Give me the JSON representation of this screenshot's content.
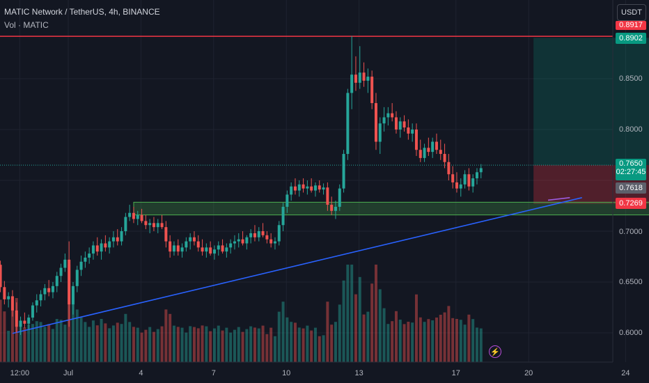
{
  "header": {
    "title": "MATIC Network / TetherUS, 4h, BINANCE",
    "volume_label": "Vol · MATIC"
  },
  "currency_button": "USDT",
  "price_axis": [
    "0.8500",
    "0.8000",
    "0.7000",
    "0.6500",
    "0.6000"
  ],
  "price_tags": {
    "resistance": "0.8917",
    "target": "0.8902",
    "entry": "0.7650",
    "countdown": "02:27:45",
    "current": "0.7618",
    "stop": "0.7269"
  },
  "date_axis": [
    {
      "label": "12:00",
      "x": -2
    },
    {
      "label": "Jul",
      "x": 0
    },
    {
      "label": "4",
      "x": 3
    },
    {
      "label": "7",
      "x": 6
    },
    {
      "label": "10",
      "x": 9
    },
    {
      "label": "13",
      "x": 12
    },
    {
      "label": "17",
      "x": 16
    },
    {
      "label": "20",
      "x": 19
    },
    {
      "label": "24",
      "x": 23
    }
  ],
  "colors": {
    "up": "#26a69a",
    "down": "#ef5350",
    "trendline": "#2962ff",
    "resistance": "#f23645",
    "zone": "#4caf50",
    "target_tag": "#089981",
    "stop_tag": "#f23645"
  },
  "icons": {
    "alert": "lightning-bolt-icon"
  },
  "chart_data": {
    "type": "candlestick",
    "title": "MATIC Network / TetherUS, 4h, BINANCE",
    "x_unit": "days (0 = Jul 1)",
    "ylim": [
      0.585,
      0.895
    ],
    "xlim": [
      -4.5,
      27
    ],
    "volume_series": "Vol · MATIC",
    "resistance_level": 0.8917,
    "support_zone": [
      0.716,
      0.7285
    ],
    "trendline": [
      [
        -2.3,
        0.5995
      ],
      [
        21.2,
        0.733
      ]
    ],
    "long_position": {
      "entry": 0.765,
      "target": 0.8902,
      "stop": 0.7269,
      "x_start": 19.2,
      "x_end": 25.2
    },
    "candles": [
      [
        0.672,
        0.68,
        0.664,
        0.668
      ],
      [
        0.668,
        0.676,
        0.66,
        0.664
      ],
      [
        0.664,
        0.671,
        0.657,
        0.668
      ],
      [
        0.668,
        0.672,
        0.658,
        0.661
      ],
      [
        0.661,
        0.666,
        0.654,
        0.658
      ],
      [
        0.658,
        0.664,
        0.652,
        0.661
      ],
      [
        0.661,
        0.668,
        0.656,
        0.664
      ],
      [
        0.664,
        0.673,
        0.66,
        0.67
      ],
      [
        0.67,
        0.676,
        0.664,
        0.667
      ],
      [
        0.667,
        0.671,
        0.64,
        0.645
      ],
      [
        0.645,
        0.651,
        0.628,
        0.633
      ],
      [
        0.633,
        0.64,
        0.625,
        0.636
      ],
      [
        0.636,
        0.642,
        0.616,
        0.622
      ],
      [
        0.622,
        0.63,
        0.6,
        0.606
      ],
      [
        0.606,
        0.616,
        0.598,
        0.612
      ],
      [
        0.612,
        0.62,
        0.605,
        0.609
      ],
      [
        0.609,
        0.618,
        0.603,
        0.615
      ],
      [
        0.615,
        0.63,
        0.612,
        0.627
      ],
      [
        0.627,
        0.638,
        0.62,
        0.632
      ],
      [
        0.632,
        0.642,
        0.626,
        0.638
      ],
      [
        0.638,
        0.648,
        0.632,
        0.644
      ],
      [
        0.644,
        0.652,
        0.636,
        0.64
      ],
      [
        0.64,
        0.65,
        0.634,
        0.646
      ],
      [
        0.646,
        0.66,
        0.64,
        0.656
      ],
      [
        0.656,
        0.668,
        0.65,
        0.664
      ],
      [
        0.664,
        0.678,
        0.66,
        0.672
      ],
      [
        0.672,
        0.69,
        0.606,
        0.628
      ],
      [
        0.628,
        0.65,
        0.618,
        0.646
      ],
      [
        0.646,
        0.666,
        0.64,
        0.662
      ],
      [
        0.662,
        0.676,
        0.656,
        0.67
      ],
      [
        0.67,
        0.68,
        0.664,
        0.674
      ],
      [
        0.674,
        0.684,
        0.668,
        0.678
      ],
      [
        0.678,
        0.69,
        0.672,
        0.686
      ],
      [
        0.686,
        0.694,
        0.676,
        0.68
      ],
      [
        0.68,
        0.692,
        0.672,
        0.688
      ],
      [
        0.688,
        0.696,
        0.68,
        0.684
      ],
      [
        0.684,
        0.694,
        0.678,
        0.69
      ],
      [
        0.69,
        0.7,
        0.684,
        0.694
      ],
      [
        0.694,
        0.702,
        0.686,
        0.69
      ],
      [
        0.69,
        0.704,
        0.686,
        0.7
      ],
      [
        0.7,
        0.718,
        0.696,
        0.714
      ],
      [
        0.714,
        0.726,
        0.71,
        0.718
      ],
      [
        0.718,
        0.724,
        0.708,
        0.712
      ],
      [
        0.712,
        0.72,
        0.706,
        0.716
      ],
      [
        0.716,
        0.722,
        0.708,
        0.71
      ],
      [
        0.71,
        0.716,
        0.702,
        0.706
      ],
      [
        0.706,
        0.712,
        0.698,
        0.708
      ],
      [
        0.708,
        0.714,
        0.7,
        0.704
      ],
      [
        0.704,
        0.712,
        0.698,
        0.708
      ],
      [
        0.708,
        0.716,
        0.702,
        0.704
      ],
      [
        0.704,
        0.71,
        0.684,
        0.69
      ],
      [
        0.69,
        0.696,
        0.674,
        0.68
      ],
      [
        0.68,
        0.69,
        0.676,
        0.686
      ],
      [
        0.686,
        0.692,
        0.676,
        0.68
      ],
      [
        0.68,
        0.688,
        0.674,
        0.684
      ],
      [
        0.684,
        0.694,
        0.68,
        0.69
      ],
      [
        0.69,
        0.698,
        0.682,
        0.694
      ],
      [
        0.694,
        0.7,
        0.686,
        0.69
      ],
      [
        0.69,
        0.696,
        0.68,
        0.684
      ],
      [
        0.684,
        0.692,
        0.676,
        0.68
      ],
      [
        0.68,
        0.688,
        0.674,
        0.684
      ],
      [
        0.684,
        0.69,
        0.676,
        0.678
      ],
      [
        0.678,
        0.686,
        0.672,
        0.682
      ],
      [
        0.682,
        0.69,
        0.676,
        0.686
      ],
      [
        0.686,
        0.692,
        0.678,
        0.68
      ],
      [
        0.68,
        0.688,
        0.674,
        0.684
      ],
      [
        0.684,
        0.692,
        0.678,
        0.688
      ],
      [
        0.688,
        0.696,
        0.682,
        0.69
      ],
      [
        0.69,
        0.698,
        0.684,
        0.692
      ],
      [
        0.692,
        0.7,
        0.686,
        0.688
      ],
      [
        0.688,
        0.696,
        0.682,
        0.694
      ],
      [
        0.694,
        0.702,
        0.688,
        0.698
      ],
      [
        0.698,
        0.706,
        0.69,
        0.694
      ],
      [
        0.694,
        0.704,
        0.69,
        0.7
      ],
      [
        0.7,
        0.708,
        0.694,
        0.696
      ],
      [
        0.696,
        0.7,
        0.688,
        0.692
      ],
      [
        0.692,
        0.698,
        0.684,
        0.688
      ],
      [
        0.688,
        0.694,
        0.682,
        0.69
      ],
      [
        0.69,
        0.71,
        0.686,
        0.706
      ],
      [
        0.706,
        0.728,
        0.7,
        0.724
      ],
      [
        0.724,
        0.74,
        0.718,
        0.736
      ],
      [
        0.736,
        0.748,
        0.73,
        0.744
      ],
      [
        0.744,
        0.752,
        0.736,
        0.74
      ],
      [
        0.74,
        0.75,
        0.734,
        0.746
      ],
      [
        0.746,
        0.752,
        0.738,
        0.742
      ],
      [
        0.742,
        0.75,
        0.736,
        0.744
      ],
      [
        0.744,
        0.752,
        0.738,
        0.74
      ],
      [
        0.74,
        0.748,
        0.734,
        0.745
      ],
      [
        0.745,
        0.75,
        0.738,
        0.741
      ],
      [
        0.741,
        0.747,
        0.736,
        0.743
      ],
      [
        0.743,
        0.748,
        0.72,
        0.726
      ],
      [
        0.726,
        0.734,
        0.716,
        0.72
      ],
      [
        0.72,
        0.73,
        0.712,
        0.724
      ],
      [
        0.724,
        0.746,
        0.72,
        0.742
      ],
      [
        0.742,
        0.78,
        0.738,
        0.776
      ],
      [
        0.776,
        0.84,
        0.77,
        0.836
      ],
      [
        0.836,
        0.892,
        0.82,
        0.854
      ],
      [
        0.854,
        0.872,
        0.838,
        0.846
      ],
      [
        0.846,
        0.882,
        0.84,
        0.856
      ],
      [
        0.856,
        0.866,
        0.842,
        0.848
      ],
      [
        0.848,
        0.86,
        0.836,
        0.852
      ],
      [
        0.852,
        0.858,
        0.82,
        0.826
      ],
      [
        0.826,
        0.836,
        0.78,
        0.788
      ],
      [
        0.788,
        0.812,
        0.776,
        0.806
      ],
      [
        0.806,
        0.822,
        0.798,
        0.812
      ],
      [
        0.812,
        0.822,
        0.804,
        0.816
      ],
      [
        0.816,
        0.826,
        0.808,
        0.812
      ],
      [
        0.812,
        0.818,
        0.796,
        0.8
      ],
      [
        0.8,
        0.812,
        0.792,
        0.808
      ],
      [
        0.808,
        0.814,
        0.798,
        0.802
      ],
      [
        0.802,
        0.81,
        0.79,
        0.796
      ],
      [
        0.796,
        0.806,
        0.788,
        0.8
      ],
      [
        0.8,
        0.806,
        0.774,
        0.78
      ],
      [
        0.78,
        0.79,
        0.768,
        0.772
      ],
      [
        0.772,
        0.786,
        0.768,
        0.782
      ],
      [
        0.782,
        0.792,
        0.774,
        0.778
      ],
      [
        0.778,
        0.792,
        0.772,
        0.788
      ],
      [
        0.788,
        0.796,
        0.776,
        0.78
      ],
      [
        0.78,
        0.79,
        0.77,
        0.776
      ],
      [
        0.776,
        0.786,
        0.762,
        0.768
      ],
      [
        0.768,
        0.776,
        0.75,
        0.756
      ],
      [
        0.756,
        0.764,
        0.742,
        0.748
      ],
      [
        0.748,
        0.758,
        0.738,
        0.742
      ],
      [
        0.742,
        0.752,
        0.734,
        0.746
      ],
      [
        0.746,
        0.76,
        0.742,
        0.756
      ],
      [
        0.756,
        0.762,
        0.74,
        0.744
      ],
      [
        0.744,
        0.756,
        0.738,
        0.752
      ],
      [
        0.752,
        0.762,
        0.746,
        0.758
      ],
      [
        0.758,
        0.766,
        0.752,
        0.762
      ]
    ]
  }
}
